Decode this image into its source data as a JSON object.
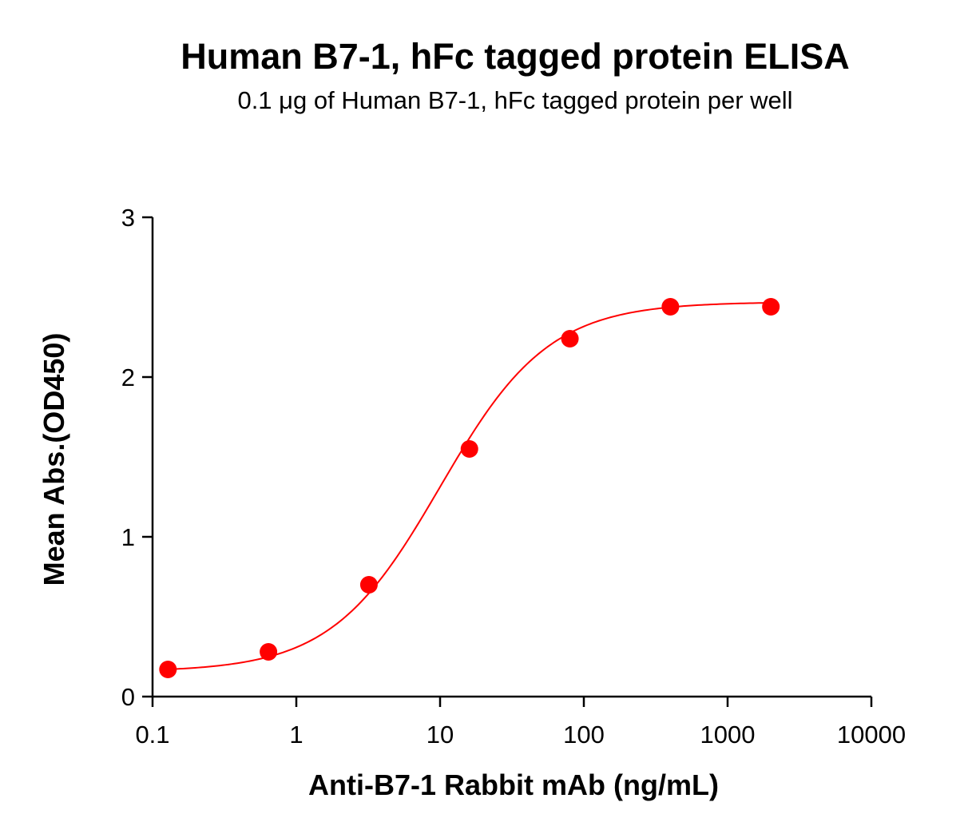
{
  "chart_data": {
    "type": "scatter",
    "title": "Human B7-1, hFc tagged protein ELISA",
    "subtitle": "0.1 μg of Human B7-1, hFc tagged protein per well",
    "xlabel": "Anti-B7-1 Rabbit mAb (ng/mL)",
    "ylabel": "Mean Abs.(OD450)",
    "xscale": "log",
    "xlim": [
      0.1,
      10000
    ],
    "ylim": [
      0,
      3
    ],
    "xticks": [
      {
        "value": 0.1,
        "label": "0.1"
      },
      {
        "value": 1,
        "label": "1"
      },
      {
        "value": 10,
        "label": "10"
      },
      {
        "value": 100,
        "label": "100"
      },
      {
        "value": 1000,
        "label": "1000"
      },
      {
        "value": 10000,
        "label": "10000"
      }
    ],
    "yticks": [
      {
        "value": 0,
        "label": "0"
      },
      {
        "value": 1,
        "label": "1"
      },
      {
        "value": 2,
        "label": "2"
      },
      {
        "value": 3,
        "label": "3"
      }
    ],
    "grid": false,
    "series": [
      {
        "name": "Anti-B7-1 Rabbit mAb",
        "color": "#ff0000",
        "x": [
          0.128,
          0.64,
          3.2,
          16,
          80,
          400,
          2000
        ],
        "y": [
          0.17,
          0.28,
          0.7,
          1.55,
          2.24,
          2.44,
          2.44
        ],
        "fit": {
          "model": "4PL",
          "bottom": 0.155,
          "top": 2.47,
          "ec50": 10,
          "hill": 1.15
        }
      }
    ]
  }
}
